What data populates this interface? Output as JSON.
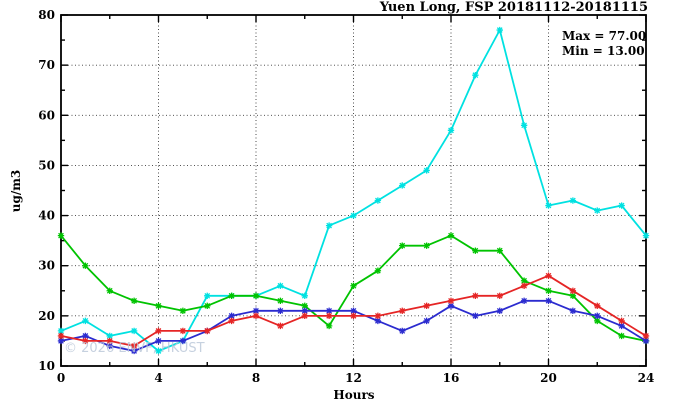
{
  "chart_data": {
    "type": "line",
    "title": "Yuen Long, FSP 20181112-20181115",
    "annotations": [
      "Max = 77.00",
      "Min = 13.00"
    ],
    "watermark": "© 2026 ENVF, HKUST",
    "xlabel": "Hours",
    "ylabel": "ug/m3",
    "xlim": [
      0,
      24
    ],
    "ylim": [
      10,
      80
    ],
    "x_ticks": [
      0,
      4,
      8,
      12,
      16,
      20,
      24
    ],
    "y_ticks": [
      10,
      20,
      30,
      40,
      50,
      60,
      70,
      80
    ],
    "x_minor_step": 2,
    "y_minor_step": 5,
    "grid": "dotted",
    "legend_position": "none",
    "x": [
      0,
      1,
      2,
      3,
      4,
      5,
      6,
      7,
      8,
      9,
      10,
      11,
      12,
      13,
      14,
      15,
      16,
      17,
      18,
      19,
      20,
      21,
      22,
      23,
      24
    ],
    "series": [
      {
        "name": "cyan",
        "color": "#00E1E1",
        "values": [
          17,
          19,
          16,
          17,
          13,
          15,
          24,
          24,
          24,
          26,
          24,
          38,
          40,
          43,
          46,
          49,
          57,
          68,
          77,
          58,
          42,
          43,
          41,
          42,
          36
        ]
      },
      {
        "name": "green",
        "color": "#00C300",
        "values": [
          36,
          30,
          25,
          23,
          22,
          21,
          22,
          24,
          24,
          23,
          22,
          18,
          26,
          29,
          34,
          34,
          36,
          33,
          33,
          27,
          25,
          24,
          19,
          16,
          15
        ]
      },
      {
        "name": "blue",
        "color": "#2B2BCF",
        "values": [
          15,
          16,
          14,
          13,
          15,
          15,
          17,
          20,
          21,
          21,
          21,
          21,
          21,
          19,
          17,
          19,
          22,
          20,
          21,
          23,
          23,
          21,
          20,
          18,
          15
        ]
      },
      {
        "name": "red",
        "color": "#E52525",
        "values": [
          16,
          15,
          15,
          14,
          17,
          17,
          17,
          19,
          20,
          18,
          20,
          20,
          20,
          20,
          21,
          22,
          23,
          24,
          24,
          26,
          28,
          25,
          22,
          19,
          16
        ]
      }
    ]
  }
}
